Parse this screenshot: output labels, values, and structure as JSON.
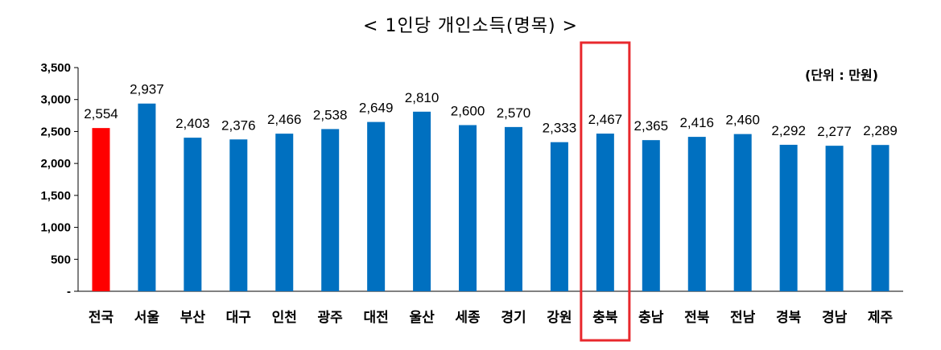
{
  "chart_data": {
    "type": "bar",
    "title": "< 1인당 개인소득(명목) >",
    "unit": "(단위 : 만원)",
    "categories": [
      "전국",
      "서울",
      "부산",
      "대구",
      "인천",
      "광주",
      "대전",
      "울산",
      "세종",
      "경기",
      "강원",
      "충북",
      "충남",
      "전북",
      "전남",
      "경북",
      "경남",
      "제주"
    ],
    "values": [
      2554,
      2937,
      2403,
      2376,
      2466,
      2538,
      2649,
      2810,
      2600,
      2570,
      2333,
      2467,
      2365,
      2416,
      2460,
      2292,
      2277,
      2289
    ],
    "value_labels": [
      "2,554",
      "2,937",
      "2,403",
      "2,376",
      "2,466",
      "2,538",
      "2,649",
      "2,810",
      "2,600",
      "2,570",
      "2,333",
      "2,467",
      "2,365",
      "2,416",
      "2,460",
      "2,292",
      "2,277",
      "2,289"
    ],
    "yticks": [
      0,
      500,
      1000,
      1500,
      2000,
      2500,
      3000,
      3500
    ],
    "ytick_labels": [
      "-",
      "500",
      "1,000",
      "1,500",
      "2,000",
      "2,500",
      "3,000",
      "3,500"
    ],
    "ylim": [
      0,
      3500
    ],
    "grid": false,
    "colors": {
      "national": "#ff0000",
      "region": "#0070c0",
      "highlight_box": "#e8282d"
    },
    "highlighted_category": "충북"
  }
}
